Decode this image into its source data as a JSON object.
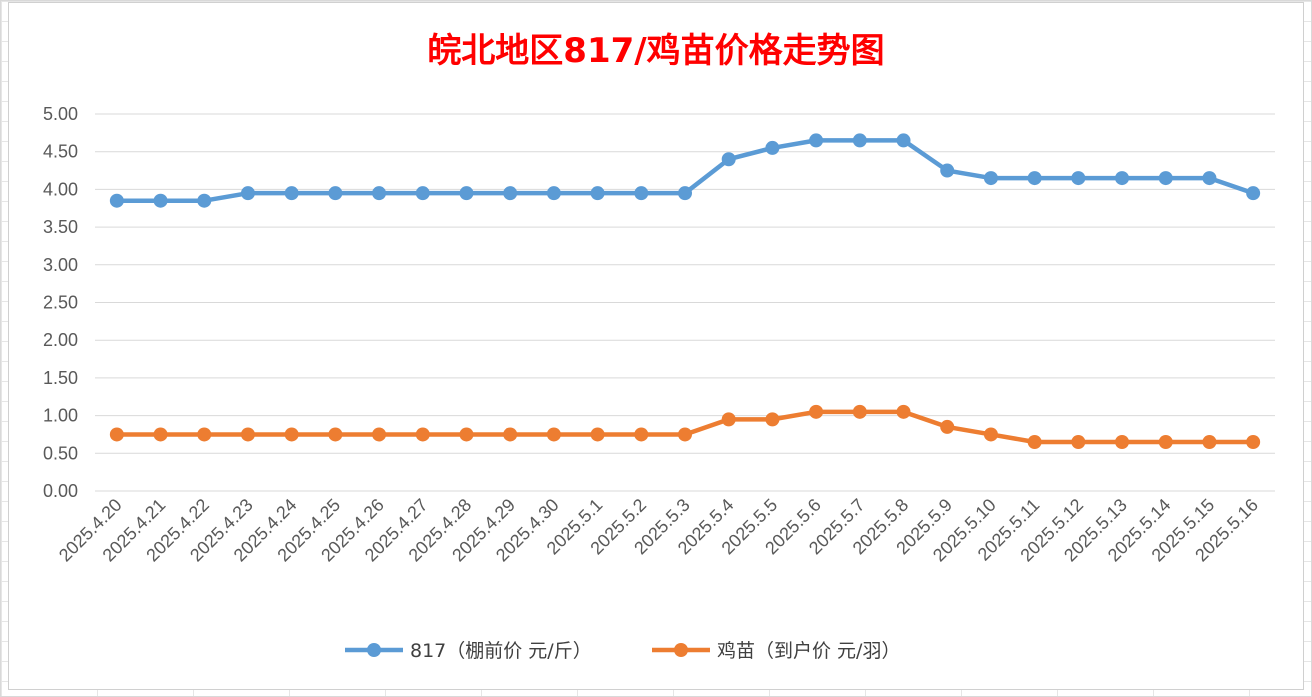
{
  "chart_data": {
    "type": "line",
    "title": "皖北地区817/鸡苗价格走势图",
    "title_color": "#ff0000",
    "xlabel": "",
    "ylabel": "",
    "ylim": [
      0,
      5
    ],
    "y_ticks": [
      "0.00",
      "0.50",
      "1.00",
      "1.50",
      "2.00",
      "2.50",
      "3.00",
      "3.50",
      "4.00",
      "4.50",
      "5.00"
    ],
    "grid": true,
    "legend_position": "bottom",
    "categories": [
      "2025.4.20",
      "2025.4.21",
      "2025.4.22",
      "2025.4.23",
      "2025.4.24",
      "2025.4.25",
      "2025.4.26",
      "2025.4.27",
      "2025.4.28",
      "2025.4.29",
      "2025.4.30",
      "2025.5.1",
      "2025.5.2",
      "2025.5.3",
      "2025.5.4",
      "2025.5.5",
      "2025.5.6",
      "2025.5.7",
      "2025.5.8",
      "2025.5.9",
      "2025.5.10",
      "2025.5.11",
      "2025.5.12",
      "2025.5.13",
      "2025.5.14",
      "2025.5.15",
      "2025.5.16"
    ],
    "series": [
      {
        "name": "817（棚前价 元/斤）",
        "color": "#5b9bd5",
        "values": [
          3.85,
          3.85,
          3.85,
          3.95,
          3.95,
          3.95,
          3.95,
          3.95,
          3.95,
          3.95,
          3.95,
          3.95,
          3.95,
          3.95,
          4.4,
          4.55,
          4.65,
          4.65,
          4.65,
          4.25,
          4.15,
          4.15,
          4.15,
          4.15,
          4.15,
          4.15,
          3.95
        ]
      },
      {
        "name": "鸡苗（到户价 元/羽）",
        "color": "#ed7d31",
        "values": [
          0.75,
          0.75,
          0.75,
          0.75,
          0.75,
          0.75,
          0.75,
          0.75,
          0.75,
          0.75,
          0.75,
          0.75,
          0.75,
          0.75,
          0.95,
          0.95,
          1.05,
          1.05,
          1.05,
          0.85,
          0.75,
          0.65,
          0.65,
          0.65,
          0.65,
          0.65,
          0.65
        ]
      }
    ]
  }
}
